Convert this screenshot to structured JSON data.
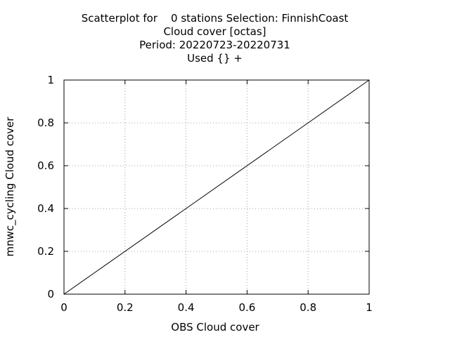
{
  "chart_data": {
    "type": "scatter",
    "title_lines": [
      "Scatterplot for    0 stations Selection: FinnishCoast",
      "Cloud cover [octas]",
      "Period: 20220723-20220731",
      "Used {} +"
    ],
    "xlabel": "OBS Cloud cover",
    "ylabel": "mnwc_cycling Cloud cover",
    "xlim": [
      0,
      1
    ],
    "ylim": [
      0,
      1
    ],
    "xticks": [
      0,
      0.2,
      0.4,
      0.6,
      0.8,
      1
    ],
    "yticks": [
      0,
      0.2,
      0.4,
      0.6,
      0.8,
      1
    ],
    "xtick_labels": [
      "0",
      "0.2",
      "0.4",
      "0.6",
      "0.8",
      "1"
    ],
    "ytick_labels": [
      "0",
      "0.2",
      "0.4",
      "0.6",
      "0.8",
      "1"
    ],
    "grid": true,
    "series": [
      {
        "values": [],
        "x": []
      }
    ],
    "reference_line": {
      "x": [
        0,
        1
      ],
      "y": [
        0,
        1
      ]
    }
  }
}
